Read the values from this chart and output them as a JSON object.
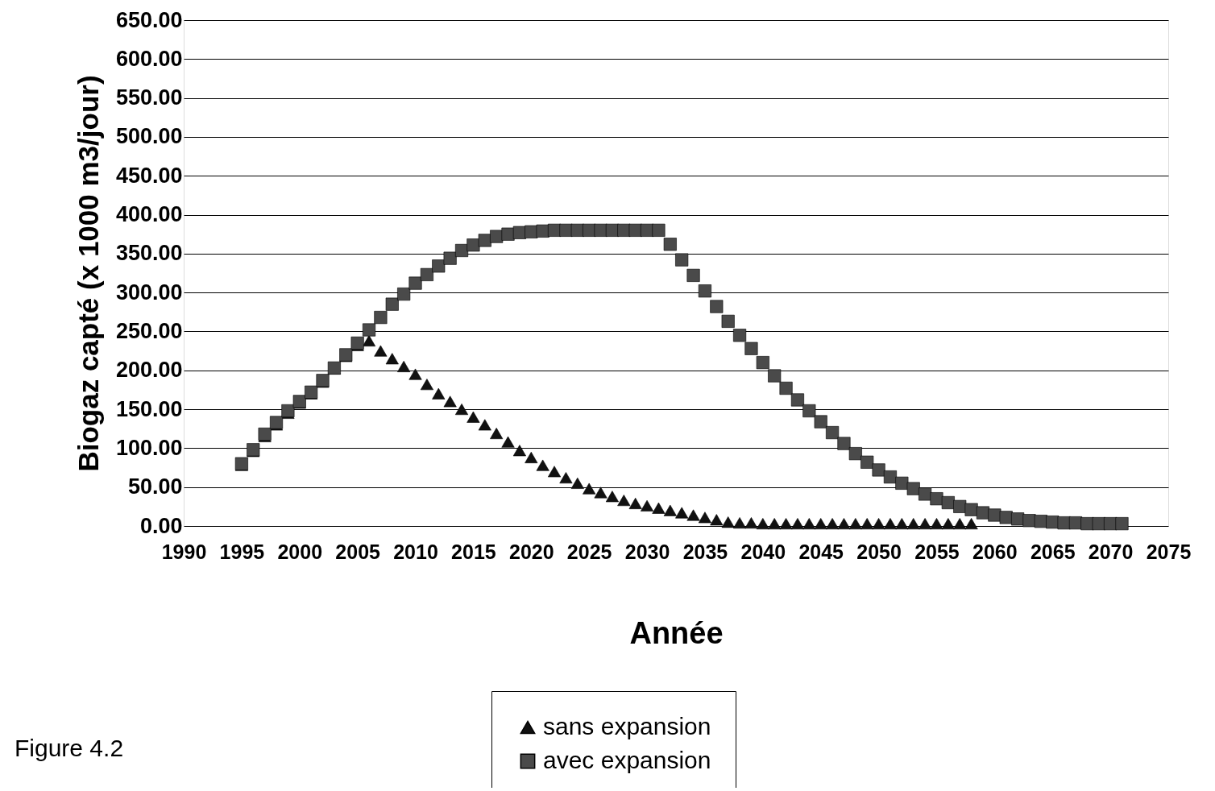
{
  "chart_data": {
    "type": "scatter",
    "xlabel": "Année",
    "ylabel": "Biogaz capté (x 1000 m3/jour)",
    "annotations": [
      "Figure 4.2"
    ],
    "xlim": [
      1990,
      2075
    ],
    "xticks": [
      1990,
      1995,
      2000,
      2005,
      2010,
      2015,
      2020,
      2025,
      2030,
      2035,
      2040,
      2045,
      2050,
      2055,
      2060,
      2065,
      2070,
      2075
    ],
    "ylim": [
      0,
      650
    ],
    "yticks": [
      {
        "value": 0,
        "label": "0.00"
      },
      {
        "value": 50,
        "label": "50.00"
      },
      {
        "value": 100,
        "label": "100.00"
      },
      {
        "value": 150,
        "label": "150.00"
      },
      {
        "value": 200,
        "label": "200.00"
      },
      {
        "value": 250,
        "label": "250.00"
      },
      {
        "value": 300,
        "label": "300.00"
      },
      {
        "value": 350,
        "label": "350.00"
      },
      {
        "value": 400,
        "label": "400.00"
      },
      {
        "value": 450,
        "label": "450.00"
      },
      {
        "value": 500,
        "label": "500.00"
      },
      {
        "value": 550,
        "label": "550.00"
      },
      {
        "value": 600,
        "label": "600.00"
      },
      {
        "value": 650,
        "label": "650.00"
      }
    ],
    "grid": "y",
    "legend": "bottom",
    "series": [
      {
        "name": "sans expansion",
        "color": "#111111",
        "marker": "triangle",
        "x": [
          1995,
          1996,
          1997,
          1998,
          1999,
          2000,
          2001,
          2002,
          2003,
          2004,
          2005,
          2006,
          2007,
          2008,
          2009,
          2010,
          2011,
          2012,
          2013,
          2014,
          2015,
          2016,
          2017,
          2018,
          2019,
          2020,
          2021,
          2022,
          2023,
          2024,
          2025,
          2026,
          2027,
          2028,
          2029,
          2030,
          2031,
          2032,
          2033,
          2034,
          2035,
          2036,
          2037,
          2038,
          2039,
          2040,
          2041,
          2042,
          2043,
          2044,
          2045,
          2046,
          2047,
          2048,
          2049,
          2050,
          2051,
          2052,
          2053,
          2054,
          2055,
          2056,
          2057,
          2058
        ],
        "values": [
          78,
          96,
          115,
          130,
          145,
          158,
          170,
          185,
          202,
          218,
          232,
          238,
          225,
          215,
          205,
          195,
          182,
          170,
          160,
          150,
          140,
          130,
          119,
          108,
          97,
          88,
          78,
          70,
          62,
          55,
          48,
          43,
          38,
          33,
          29,
          26,
          23,
          20,
          17,
          14,
          11,
          8,
          5,
          4,
          4,
          3,
          3,
          3,
          3,
          3,
          3,
          3,
          3,
          3,
          3,
          3,
          3,
          3,
          3,
          3,
          3,
          3,
          3,
          3
        ]
      },
      {
        "name": "avec expansion",
        "color": "#4a4a4a",
        "marker": "square",
        "x": [
          1995,
          1996,
          1997,
          1998,
          1999,
          2000,
          2001,
          2002,
          2003,
          2004,
          2005,
          2006,
          2007,
          2008,
          2009,
          2010,
          2011,
          2012,
          2013,
          2014,
          2015,
          2016,
          2017,
          2018,
          2019,
          2020,
          2021,
          2022,
          2023,
          2024,
          2025,
          2026,
          2027,
          2028,
          2029,
          2030,
          2031,
          2032,
          2033,
          2034,
          2035,
          2036,
          2037,
          2038,
          2039,
          2040,
          2041,
          2042,
          2043,
          2044,
          2045,
          2046,
          2047,
          2048,
          2049,
          2050,
          2051,
          2052,
          2053,
          2054,
          2055,
          2056,
          2057,
          2058,
          2059,
          2060,
          2061,
          2062,
          2063,
          2064,
          2065,
          2066,
          2067,
          2068,
          2069,
          2070,
          2071
        ],
        "values": [
          80,
          98,
          118,
          133,
          148,
          160,
          172,
          187,
          203,
          220,
          235,
          252,
          268,
          285,
          298,
          312,
          323,
          334,
          344,
          354,
          361,
          367,
          372,
          375,
          377,
          378,
          379,
          380,
          380,
          380,
          380,
          380,
          380,
          380,
          380,
          380,
          380,
          362,
          342,
          322,
          302,
          282,
          263,
          245,
          228,
          210,
          193,
          177,
          162,
          148,
          134,
          120,
          106,
          93,
          82,
          72,
          63,
          55,
          48,
          41,
          35,
          30,
          25,
          21,
          17,
          14,
          11,
          9,
          7,
          6,
          5,
          4,
          4,
          3,
          3,
          3,
          3
        ]
      }
    ]
  }
}
